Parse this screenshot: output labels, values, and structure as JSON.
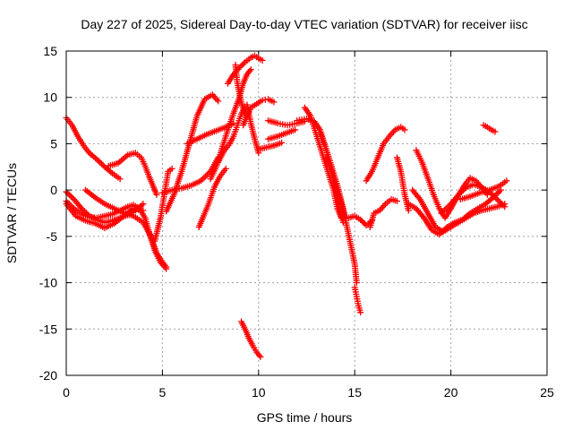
{
  "chart_data": {
    "type": "scatter",
    "title": "Day 227 of 2025, Sidereal Day-to-day VTEC variation (SDTVAR) for receiver iisc",
    "xlabel": "GPS time / hours",
    "ylabel": "SDTVAR / TECUs",
    "xlim": [
      0,
      25
    ],
    "ylim": [
      -20,
      15
    ],
    "x_ticks": [
      0,
      5,
      10,
      15,
      20,
      25
    ],
    "y_ticks": [
      -20,
      -15,
      -10,
      -5,
      0,
      5,
      10,
      15
    ],
    "x_tick_labels": [
      "0",
      "5",
      "10",
      "15",
      "20",
      "25"
    ],
    "y_tick_labels": [
      "-20",
      "-15",
      "-10",
      "-5",
      "0",
      "5",
      "10",
      "15"
    ],
    "grid": true,
    "marker": "+",
    "color": "#ff0000",
    "series": [
      {
        "points": [
          [
            0,
            7.8
          ],
          [
            0.3,
            7
          ],
          [
            0.6,
            5.8
          ],
          [
            0.9,
            4.8
          ],
          [
            1.2,
            4
          ],
          [
            1.6,
            3.3
          ],
          [
            2,
            2.5
          ],
          [
            2.4,
            1.8
          ],
          [
            2.8,
            1.2
          ]
        ]
      },
      {
        "points": [
          [
            2.2,
            2.6
          ],
          [
            2.7,
            2.9
          ],
          [
            3.2,
            3.8
          ],
          [
            3.6,
            4
          ],
          [
            3.9,
            3.5
          ],
          [
            4.1,
            2.6
          ],
          [
            4.3,
            1.5
          ],
          [
            4.5,
            0.5
          ],
          [
            4.7,
            -0.5
          ]
        ]
      },
      {
        "points": [
          [
            0,
            -1.2
          ],
          [
            0.4,
            -2
          ],
          [
            0.8,
            -2.6
          ],
          [
            1.2,
            -2.9
          ],
          [
            1.6,
            -3
          ],
          [
            2,
            -2.8
          ],
          [
            2.4,
            -2.6
          ],
          [
            2.8,
            -2.2
          ],
          [
            3.2,
            -1.8
          ],
          [
            3.5,
            -1.6
          ],
          [
            3.8,
            -2
          ],
          [
            4.1,
            -3
          ],
          [
            4.3,
            -4.5
          ],
          [
            4.6,
            -6.5
          ],
          [
            4.9,
            -7.8
          ],
          [
            5.2,
            -8.5
          ]
        ]
      },
      {
        "points": [
          [
            0,
            -0.2
          ],
          [
            0.4,
            -1
          ],
          [
            0.8,
            -2
          ],
          [
            1.2,
            -2.8
          ],
          [
            1.6,
            -3.2
          ],
          [
            2,
            -3.5
          ],
          [
            2.4,
            -3.3
          ],
          [
            2.8,
            -3
          ],
          [
            3.2,
            -2.7
          ],
          [
            3.6,
            -2.2
          ],
          [
            4,
            -1.5
          ]
        ]
      },
      {
        "points": [
          [
            1,
            0
          ],
          [
            1.5,
            -0.8
          ],
          [
            2,
            -1.5
          ],
          [
            2.5,
            -2
          ],
          [
            3,
            -2.5
          ],
          [
            3.5,
            -2.8
          ],
          [
            4,
            -3.5
          ],
          [
            4.4,
            -5
          ],
          [
            4.7,
            -6.8
          ],
          [
            5,
            -7.8
          ],
          [
            5.2,
            -8.3
          ]
        ]
      },
      {
        "points": [
          [
            0,
            -1.5
          ],
          [
            0.5,
            -2.8
          ],
          [
            1,
            -3.3
          ],
          [
            1.5,
            -3.6
          ],
          [
            2,
            -4.1
          ],
          [
            2.5,
            -3.6
          ],
          [
            3,
            -2.8
          ],
          [
            3.5,
            -2
          ],
          [
            4,
            -2.2
          ]
        ]
      },
      {
        "points": [
          [
            4.6,
            -5.5
          ],
          [
            4.9,
            -3
          ],
          [
            5.1,
            -0.5
          ],
          [
            5.3,
            2
          ],
          [
            5.5,
            2.3
          ]
        ]
      },
      {
        "points": [
          [
            5,
            -0.3
          ],
          [
            5.5,
            0
          ],
          [
            6,
            0.2
          ],
          [
            6.5,
            0.5
          ],
          [
            7,
            1
          ],
          [
            7.5,
            2
          ],
          [
            7.9,
            3.5
          ]
        ]
      },
      {
        "points": [
          [
            5.2,
            -2.3
          ],
          [
            5.6,
            -0.5
          ],
          [
            6,
            2
          ],
          [
            6.4,
            5
          ],
          [
            6.8,
            8
          ],
          [
            7.2,
            9.8
          ],
          [
            7.6,
            10.3
          ],
          [
            7.9,
            9.6
          ]
        ]
      },
      {
        "points": [
          [
            6.3,
            5
          ],
          [
            6.8,
            5.5
          ],
          [
            7.3,
            6
          ],
          [
            7.8,
            6.4
          ],
          [
            8.3,
            6.8
          ],
          [
            8.7,
            7.2
          ]
        ]
      },
      {
        "points": [
          [
            6.9,
            -4
          ],
          [
            7.1,
            -3
          ],
          [
            7.4,
            -1.5
          ],
          [
            7.7,
            0.3
          ],
          [
            8,
            1.5
          ],
          [
            8.3,
            2.3
          ]
        ]
      },
      {
        "points": [
          [
            7.5,
            1.2
          ],
          [
            7.8,
            2.5
          ],
          [
            8.1,
            4.5
          ],
          [
            8.4,
            6.5
          ],
          [
            8.7,
            8.3
          ],
          [
            9,
            10
          ],
          [
            9.2,
            11.5
          ],
          [
            9.4,
            12.5
          ],
          [
            9.6,
            13
          ]
        ]
      },
      {
        "points": [
          [
            7.9,
            3
          ],
          [
            8.2,
            4.2
          ],
          [
            8.5,
            5
          ],
          [
            8.7,
            5.8
          ],
          [
            8.9,
            7
          ],
          [
            9.1,
            8.2
          ],
          [
            9.3,
            9
          ]
        ]
      },
      {
        "points": [
          [
            8.4,
            11.5
          ],
          [
            8.7,
            12.5
          ],
          [
            9,
            13.2
          ],
          [
            9.3,
            13.8
          ],
          [
            9.6,
            14.3
          ],
          [
            9.8,
            14.5
          ],
          [
            10,
            14.2
          ],
          [
            10.2,
            14
          ]
        ]
      },
      {
        "points": [
          [
            8.8,
            13.5
          ],
          [
            8.9,
            11.5
          ],
          [
            9.1,
            9.5
          ],
          [
            9.3,
            8
          ]
        ]
      },
      {
        "points": [
          [
            9.2,
            7
          ],
          [
            9.4,
            8
          ],
          [
            9.6,
            8.9
          ],
          [
            9.9,
            9.3
          ],
          [
            10.2,
            9.7
          ],
          [
            10.5,
            9.8
          ],
          [
            10.8,
            9.5
          ]
        ]
      },
      {
        "points": [
          [
            9.4,
            9.2
          ],
          [
            9.6,
            7.2
          ],
          [
            9.8,
            5.5
          ],
          [
            10,
            4
          ]
        ]
      },
      {
        "points": [
          [
            10,
            4.4
          ],
          [
            10.4,
            4.6
          ],
          [
            10.8,
            4.8
          ],
          [
            11.2,
            5.1
          ]
        ]
      },
      {
        "points": [
          [
            10.5,
            5.5
          ],
          [
            11,
            5.8
          ],
          [
            11.5,
            6.2
          ],
          [
            11.9,
            6.5
          ]
        ]
      },
      {
        "points": [
          [
            10.5,
            7.5
          ],
          [
            11,
            7.2
          ],
          [
            11.5,
            7
          ],
          [
            12,
            7.2
          ],
          [
            12.4,
            7.4
          ]
        ]
      },
      {
        "points": [
          [
            12,
            7.5
          ],
          [
            12.5,
            7.7
          ],
          [
            12.9,
            7.4
          ],
          [
            13.2,
            6.5
          ],
          [
            13.5,
            4.5
          ],
          [
            13.8,
            2.5
          ],
          [
            14,
            0.5
          ],
          [
            14.3,
            -1.5
          ],
          [
            14.5,
            -3
          ]
        ]
      },
      {
        "points": [
          [
            12.4,
            8.9
          ],
          [
            12.7,
            8
          ],
          [
            13,
            6
          ],
          [
            13.3,
            4
          ],
          [
            13.6,
            2
          ],
          [
            13.9,
            0
          ],
          [
            14.1,
            -2
          ],
          [
            14.3,
            -3
          ]
        ]
      },
      {
        "points": [
          [
            13.2,
            6.2
          ],
          [
            13.5,
            4.5
          ],
          [
            13.8,
            2.5
          ],
          [
            14.1,
            0.5
          ],
          [
            14.4,
            -2
          ],
          [
            14.6,
            -4
          ],
          [
            14.8,
            -6
          ],
          [
            15,
            -8
          ],
          [
            15.1,
            -10
          ]
        ]
      },
      {
        "points": [
          [
            13.5,
            3.5
          ],
          [
            13.8,
            2
          ],
          [
            14,
            0
          ],
          [
            14.2,
            -2
          ],
          [
            14.4,
            -3.5
          ]
        ]
      },
      {
        "points": [
          [
            15,
            -10.5
          ],
          [
            15.1,
            -11.5
          ],
          [
            15.2,
            -12.5
          ],
          [
            15.3,
            -13.2
          ]
        ]
      },
      {
        "points": [
          [
            14.7,
            -3
          ],
          [
            15,
            -2.8
          ],
          [
            15.3,
            -3.2
          ],
          [
            15.6,
            -3.8
          ],
          [
            15.9,
            -3.3
          ]
        ]
      },
      {
        "points": [
          [
            15.8,
            -4
          ],
          [
            16,
            -2.5
          ],
          [
            16.3,
            -2.2
          ],
          [
            16.6,
            -1.5
          ],
          [
            16.9,
            -1
          ],
          [
            17.2,
            -1.2
          ]
        ]
      },
      {
        "points": [
          [
            15.6,
            1
          ],
          [
            15.9,
            2
          ],
          [
            16.2,
            3.5
          ],
          [
            16.5,
            5
          ],
          [
            16.8,
            5.8
          ],
          [
            17.1,
            6.5
          ],
          [
            17.4,
            6.8
          ],
          [
            17.6,
            6.5
          ]
        ]
      },
      {
        "points": [
          [
            17.2,
            3.5
          ],
          [
            17.4,
            2
          ],
          [
            17.6,
            -0.5
          ],
          [
            17.8,
            -2.2
          ]
        ]
      },
      {
        "points": [
          [
            18.2,
            4.3
          ],
          [
            18.5,
            3
          ],
          [
            18.8,
            1.3
          ],
          [
            19.1,
            -0.5
          ],
          [
            19.4,
            -2
          ],
          [
            19.7,
            -3
          ],
          [
            20,
            -2
          ],
          [
            20.4,
            -0.5
          ],
          [
            20.7,
            0.5
          ],
          [
            21,
            1.3
          ],
          [
            21.3,
            1
          ],
          [
            21.6,
            0.3
          ],
          [
            21.9,
            -0.5
          ]
        ]
      },
      {
        "points": [
          [
            18,
            0
          ],
          [
            18.4,
            -1
          ],
          [
            18.8,
            -2.5
          ],
          [
            19.2,
            -4
          ],
          [
            19.6,
            -4.5
          ],
          [
            20,
            -4
          ],
          [
            20.4,
            -3.5
          ],
          [
            20.8,
            -3
          ],
          [
            21.2,
            -2.5
          ],
          [
            21.6,
            -2.2
          ],
          [
            22,
            -2
          ],
          [
            22.4,
            -1.8
          ],
          [
            22.8,
            -1.5
          ]
        ]
      },
      {
        "points": [
          [
            17.8,
            -1.5
          ],
          [
            18.2,
            -2
          ],
          [
            18.6,
            -3
          ],
          [
            19,
            -4.3
          ],
          [
            19.4,
            -4.8
          ],
          [
            19.8,
            -4
          ],
          [
            20.2,
            -3.5
          ],
          [
            20.6,
            -3.2
          ],
          [
            21,
            -2.5
          ],
          [
            21.4,
            -2
          ],
          [
            21.8,
            -1.5
          ],
          [
            22.2,
            -0.8
          ],
          [
            22.6,
            0
          ]
        ]
      },
      {
        "points": [
          [
            19.5,
            -2.5
          ],
          [
            20,
            -1.5
          ],
          [
            20.4,
            -0.5
          ],
          [
            20.8,
            0.3
          ],
          [
            21.2,
            0.6
          ],
          [
            21.6,
            0.3
          ],
          [
            22,
            -0.2
          ],
          [
            22.4,
            -1
          ],
          [
            22.8,
            -1.8
          ]
        ]
      },
      {
        "points": [
          [
            20.5,
            -1
          ],
          [
            21,
            -0.7
          ],
          [
            21.5,
            -0.3
          ],
          [
            22,
            0
          ],
          [
            22.5,
            0.4
          ],
          [
            22.9,
            1
          ]
        ]
      },
      {
        "points": [
          [
            21.7,
            7
          ],
          [
            21.9,
            6.8
          ],
          [
            22.1,
            6.5
          ],
          [
            22.3,
            6.3
          ]
        ]
      },
      {
        "points": [
          [
            9.1,
            -14.2
          ],
          [
            9.3,
            -15
          ],
          [
            9.5,
            -16
          ],
          [
            9.7,
            -16.8
          ],
          [
            9.9,
            -17.5
          ],
          [
            10.1,
            -18
          ]
        ]
      }
    ]
  }
}
